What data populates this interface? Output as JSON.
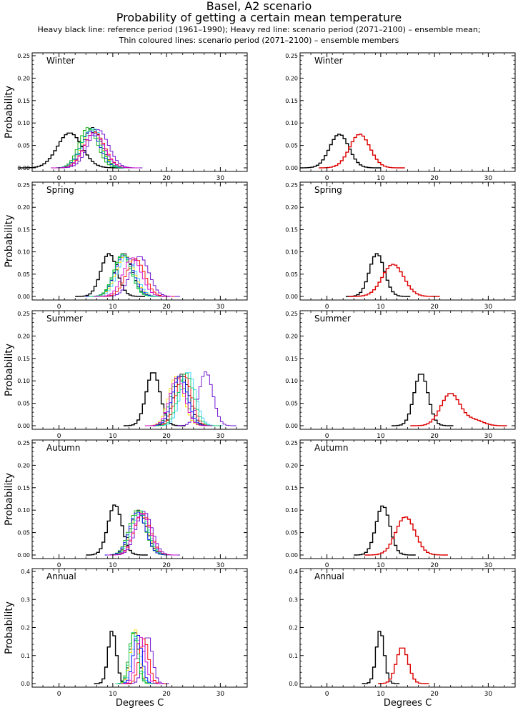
{
  "header": {
    "title": "Basel, A2 scenario",
    "subtitle": "Probability of getting a certain mean temperature",
    "note_line1": "Heavy black line: reference period (1961–1990); Heavy red line: scenario period (2071–2100) – ensemble mean;",
    "note_line2": "Thin coloured lines: scenario period (2071–2100) – ensemble members"
  },
  "colors": {
    "reference": "#000000",
    "scenario_mean": "#dd0000",
    "members": [
      "#000000",
      "#6600cc",
      "#00aa00",
      "#33ccff",
      "#ffdd00",
      "#ff0000",
      "#0000ff",
      "#00cc66",
      "#cc00cc"
    ]
  },
  "chart_data": [
    {
      "type": "line",
      "panel": "left",
      "label": "Winter",
      "xlabel": "",
      "ylabel": "Probability",
      "xlim": [
        -5,
        35
      ],
      "ylim": [
        0,
        0.25
      ],
      "xticks": [
        0,
        10,
        20,
        30
      ],
      "yticks": [
        "0.00",
        "0.05",
        "0.10",
        "0.15",
        "0.20",
        "0.25"
      ],
      "series": [
        {
          "role": "reference",
          "mean": 2.0,
          "sd": 2.3,
          "peak": 0.078
        },
        {
          "role": "member",
          "mean": 6.2,
          "sd": 1.7,
          "peak": 0.09
        },
        {
          "role": "member",
          "mean": 7.3,
          "sd": 1.9,
          "peak": 0.085
        },
        {
          "role": "member",
          "mean": 5.4,
          "sd": 1.7,
          "peak": 0.09
        },
        {
          "role": "member",
          "mean": 6.4,
          "sd": 1.8,
          "peak": 0.088
        },
        {
          "role": "member",
          "mean": 6.0,
          "sd": 1.8,
          "peak": 0.085
        },
        {
          "role": "member",
          "mean": 6.6,
          "sd": 1.9,
          "peak": 0.08
        },
        {
          "role": "member",
          "mean": 5.8,
          "sd": 1.8,
          "peak": 0.082
        },
        {
          "role": "member",
          "mean": 5.9,
          "sd": 1.8,
          "peak": 0.086
        },
        {
          "role": "member",
          "mean": 6.5,
          "sd": 1.9,
          "peak": 0.078
        }
      ]
    },
    {
      "type": "line",
      "panel": "right",
      "label": "Winter",
      "xlabel": "",
      "ylabel": "",
      "xlim": [
        -5,
        35
      ],
      "ylim": [
        0,
        0.25
      ],
      "xticks": [
        0,
        10,
        20,
        30
      ],
      "yticks": [
        "0.00",
        "0.05",
        "0.10",
        "0.15",
        "0.20",
        "0.25"
      ],
      "series": [
        {
          "role": "reference",
          "mean": 2.3,
          "sd": 1.8,
          "peak": 0.075
        },
        {
          "role": "scenario_mean",
          "mean": 6.1,
          "sd": 1.9,
          "peak": 0.075
        }
      ]
    },
    {
      "type": "line",
      "panel": "left",
      "label": "Spring",
      "xlabel": "",
      "ylabel": "Probability",
      "xlim": [
        -5,
        35
      ],
      "ylim": [
        0,
        0.25
      ],
      "xticks": [
        0,
        10,
        20,
        30
      ],
      "yticks": [
        "0.00",
        "0.05",
        "0.10",
        "0.15",
        "0.20",
        "0.25"
      ],
      "series": [
        {
          "role": "reference",
          "mean": 9.3,
          "sd": 1.5,
          "peak": 0.096
        },
        {
          "role": "member",
          "mean": 12.0,
          "sd": 1.6,
          "peak": 0.097
        },
        {
          "role": "member",
          "mean": 15.0,
          "sd": 1.7,
          "peak": 0.09
        },
        {
          "role": "member",
          "mean": 11.8,
          "sd": 1.6,
          "peak": 0.095
        },
        {
          "role": "member",
          "mean": 12.6,
          "sd": 1.7,
          "peak": 0.09
        },
        {
          "role": "member",
          "mean": 12.3,
          "sd": 1.7,
          "peak": 0.092
        },
        {
          "role": "member",
          "mean": 14.2,
          "sd": 1.7,
          "peak": 0.085
        },
        {
          "role": "member",
          "mean": 12.1,
          "sd": 1.7,
          "peak": 0.093
        },
        {
          "role": "member",
          "mean": 11.9,
          "sd": 1.6,
          "peak": 0.095
        },
        {
          "role": "member",
          "mean": 13.6,
          "sd": 1.7,
          "peak": 0.087
        }
      ]
    },
    {
      "type": "line",
      "panel": "right",
      "label": "Spring",
      "xlabel": "",
      "ylabel": "",
      "xlim": [
        -5,
        35
      ],
      "ylim": [
        0,
        0.25
      ],
      "xticks": [
        0,
        10,
        20,
        30
      ],
      "yticks": [
        "0.00",
        "0.05",
        "0.10",
        "0.15",
        "0.20",
        "0.25"
      ],
      "series": [
        {
          "role": "reference",
          "mean": 9.3,
          "sd": 1.4,
          "peak": 0.096
        },
        {
          "role": "scenario_mean",
          "mean": 12.3,
          "sd": 2.0,
          "peak": 0.072
        }
      ]
    },
    {
      "type": "line",
      "panel": "left",
      "label": "Summer",
      "xlabel": "",
      "ylabel": "Probability",
      "xlim": [
        -5,
        35
      ],
      "ylim": [
        0,
        0.25
      ],
      "xticks": [
        0,
        10,
        20,
        30
      ],
      "yticks": [
        "0.00",
        "0.05",
        "0.10",
        "0.15",
        "0.20",
        "0.25"
      ],
      "series": [
        {
          "role": "reference",
          "mean": 17.5,
          "sd": 1.3,
          "peak": 0.12
        },
        {
          "role": "member",
          "mean": 22.8,
          "sd": 1.4,
          "peak": 0.115
        },
        {
          "role": "member",
          "mean": 27.3,
          "sd": 1.3,
          "peak": 0.12
        },
        {
          "role": "member",
          "mean": 22.2,
          "sd": 1.4,
          "peak": 0.11
        },
        {
          "role": "member",
          "mean": 24.0,
          "sd": 1.4,
          "peak": 0.12
        },
        {
          "role": "member",
          "mean": 21.8,
          "sd": 1.4,
          "peak": 0.11
        },
        {
          "role": "member",
          "mean": 23.2,
          "sd": 1.4,
          "peak": 0.115
        },
        {
          "role": "member",
          "mean": 22.5,
          "sd": 1.4,
          "peak": 0.112
        },
        {
          "role": "member",
          "mean": 23.6,
          "sd": 1.4,
          "peak": 0.118
        },
        {
          "role": "member",
          "mean": 22.0,
          "sd": 1.4,
          "peak": 0.108
        }
      ]
    },
    {
      "type": "line",
      "panel": "right",
      "label": "Summer",
      "xlabel": "",
      "ylabel": "",
      "xlim": [
        -5,
        35
      ],
      "ylim": [
        0,
        0.25
      ],
      "xticks": [
        0,
        10,
        20,
        30
      ],
      "yticks": [
        "0.00",
        "0.05",
        "0.10",
        "0.15",
        "0.20",
        "0.25"
      ],
      "series": [
        {
          "role": "reference",
          "mean": 17.5,
          "sd": 1.3,
          "peak": 0.117
        },
        {
          "role": "scenario_mean",
          "mean": 23.0,
          "sd": 1.8,
          "peak": 0.072,
          "tail_mean": 27.5,
          "tail_peak": 0.012
        }
      ]
    },
    {
      "type": "line",
      "panel": "left",
      "label": "Autumn",
      "xlabel": "",
      "ylabel": "Probability",
      "xlim": [
        -5,
        35
      ],
      "ylim": [
        0,
        0.25
      ],
      "xticks": [
        0,
        10,
        20,
        30
      ],
      "yticks": [
        "0.00",
        "0.05",
        "0.10",
        "0.15",
        "0.20",
        "0.25"
      ],
      "series": [
        {
          "role": "reference",
          "mean": 10.4,
          "sd": 1.3,
          "peak": 0.112
        },
        {
          "role": "member",
          "mean": 14.8,
          "sd": 1.5,
          "peak": 0.1
        },
        {
          "role": "member",
          "mean": 15.8,
          "sd": 1.5,
          "peak": 0.097
        },
        {
          "role": "member",
          "mean": 14.5,
          "sd": 1.5,
          "peak": 0.1
        },
        {
          "role": "member",
          "mean": 15.2,
          "sd": 1.5,
          "peak": 0.095
        },
        {
          "role": "member",
          "mean": 14.9,
          "sd": 1.5,
          "peak": 0.098
        },
        {
          "role": "member",
          "mean": 15.5,
          "sd": 1.5,
          "peak": 0.094
        },
        {
          "role": "member",
          "mean": 14.6,
          "sd": 1.5,
          "peak": 0.096
        },
        {
          "role": "member",
          "mean": 15.0,
          "sd": 1.5,
          "peak": 0.1
        },
        {
          "role": "member",
          "mean": 15.4,
          "sd": 1.5,
          "peak": 0.093
        }
      ]
    },
    {
      "type": "line",
      "panel": "right",
      "label": "Autumn",
      "xlabel": "",
      "ylabel": "",
      "xlim": [
        -5,
        35
      ],
      "ylim": [
        0,
        0.25
      ],
      "xticks": [
        0,
        10,
        20,
        30
      ],
      "yticks": [
        "0.00",
        "0.05",
        "0.10",
        "0.15",
        "0.20",
        "0.25"
      ],
      "series": [
        {
          "role": "reference",
          "mean": 10.4,
          "sd": 1.3,
          "peak": 0.11
        },
        {
          "role": "scenario_mean",
          "mean": 14.6,
          "sd": 1.8,
          "peak": 0.085
        }
      ]
    },
    {
      "type": "line",
      "panel": "left",
      "label": "Annual",
      "xlabel": "Degrees C",
      "ylabel": "Probability",
      "xlim": [
        -5,
        35
      ],
      "ylim": [
        0,
        0.4
      ],
      "xticks": [
        0,
        10,
        20,
        30
      ],
      "yticks": [
        "0.0",
        "0.1",
        "0.2",
        "0.3",
        "0.4"
      ],
      "series": [
        {
          "role": "reference",
          "mean": 9.9,
          "sd": 0.75,
          "peak": 0.19
        },
        {
          "role": "member",
          "mean": 14.0,
          "sd": 0.8,
          "peak": 0.19
        },
        {
          "role": "member",
          "mean": 16.5,
          "sd": 0.85,
          "peak": 0.17
        },
        {
          "role": "member",
          "mean": 13.8,
          "sd": 0.8,
          "peak": 0.18
        },
        {
          "role": "member",
          "mean": 14.4,
          "sd": 0.8,
          "peak": 0.17
        },
        {
          "role": "member",
          "mean": 14.1,
          "sd": 0.8,
          "peak": 0.195
        },
        {
          "role": "member",
          "mean": 15.8,
          "sd": 0.85,
          "peak": 0.16
        },
        {
          "role": "member",
          "mean": 14.6,
          "sd": 0.8,
          "peak": 0.175
        },
        {
          "role": "member",
          "mean": 13.9,
          "sd": 0.8,
          "peak": 0.185
        },
        {
          "role": "member",
          "mean": 15.2,
          "sd": 0.85,
          "peak": 0.165
        }
      ]
    },
    {
      "type": "line",
      "panel": "right",
      "label": "Annual",
      "xlabel": "Degrees C",
      "ylabel": "",
      "xlim": [
        -5,
        35
      ],
      "ylim": [
        0,
        0.4
      ],
      "xticks": [
        0,
        10,
        20,
        30
      ],
      "yticks": [
        "0.0",
        "0.1",
        "0.2",
        "0.3",
        "0.4"
      ],
      "series": [
        {
          "role": "reference",
          "mean": 9.9,
          "sd": 0.75,
          "peak": 0.19
        },
        {
          "role": "scenario_mean",
          "mean": 14.0,
          "sd": 1.1,
          "peak": 0.13
        }
      ]
    }
  ]
}
